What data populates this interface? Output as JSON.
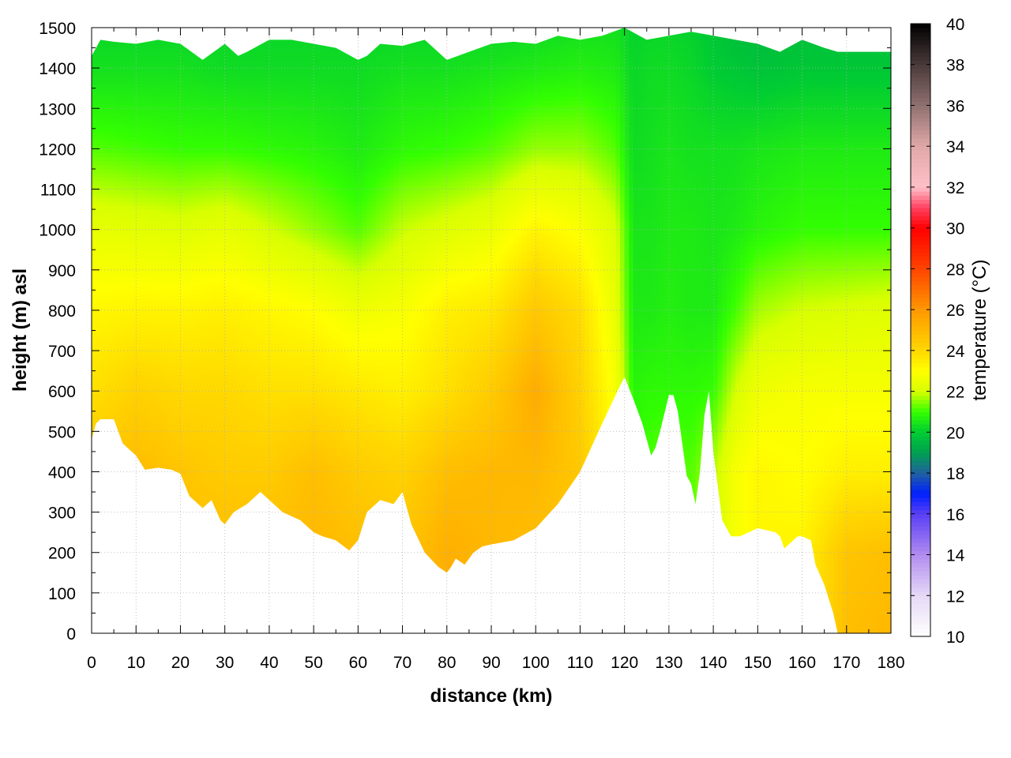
{
  "chart_data": {
    "type": "heatmap",
    "title": "",
    "xlabel": "distance (km)",
    "ylabel": "height (m) asl",
    "colorbar_label": "temperature (°C)",
    "xlim": [
      0,
      180
    ],
    "ylim": [
      0,
      1500
    ],
    "clim": [
      10,
      40
    ],
    "x_ticks": [
      0,
      10,
      20,
      30,
      40,
      50,
      60,
      70,
      80,
      90,
      100,
      110,
      120,
      130,
      140,
      150,
      160,
      170,
      180
    ],
    "y_ticks": [
      0,
      100,
      200,
      300,
      400,
      500,
      600,
      700,
      800,
      900,
      1000,
      1100,
      1200,
      1300,
      1400,
      1500
    ],
    "c_ticks": [
      10,
      12,
      14,
      16,
      18,
      20,
      22,
      24,
      26,
      28,
      30,
      32,
      34,
      36,
      38,
      40
    ],
    "grid": true,
    "colormap": [
      {
        "t": 10,
        "color": "#ffffff"
      },
      {
        "t": 12,
        "color": "#e6d9f7"
      },
      {
        "t": 14,
        "color": "#b18cf0"
      },
      {
        "t": 16,
        "color": "#5a3ff5"
      },
      {
        "t": 17,
        "color": "#0020ff"
      },
      {
        "t": 18,
        "color": "#2060a0"
      },
      {
        "t": 19,
        "color": "#00a050"
      },
      {
        "t": 20,
        "color": "#00cc33"
      },
      {
        "t": 21,
        "color": "#33ff00"
      },
      {
        "t": 22,
        "color": "#d8ff00"
      },
      {
        "t": 23,
        "color": "#ffff00"
      },
      {
        "t": 24,
        "color": "#ffd800"
      },
      {
        "t": 26,
        "color": "#ff9800"
      },
      {
        "t": 28,
        "color": "#ff4400"
      },
      {
        "t": 30,
        "color": "#ff0000"
      },
      {
        "t": 31,
        "color": "#ff4060"
      },
      {
        "t": 32,
        "color": "#ffc0c8"
      },
      {
        "t": 34,
        "color": "#e0a8a8"
      },
      {
        "t": 36,
        "color": "#907070"
      },
      {
        "t": 38,
        "color": "#4a3a3a"
      },
      {
        "t": 40,
        "color": "#000000"
      }
    ],
    "terrain_height": {
      "distance": [
        0,
        1,
        2,
        5,
        7,
        10,
        12,
        15,
        18,
        20,
        22,
        25,
        27,
        29,
        30,
        32,
        35,
        38,
        40,
        43,
        45,
        47,
        50,
        52,
        55,
        58,
        60,
        62,
        65,
        68,
        70,
        72,
        75,
        78,
        80,
        81,
        82,
        84,
        86,
        88,
        90,
        95,
        100,
        105,
        110,
        115,
        118,
        120,
        122,
        124,
        125,
        126,
        127,
        128,
        130,
        131,
        132,
        133,
        134,
        135,
        136,
        137,
        138,
        139,
        140,
        142,
        144,
        146,
        148,
        150,
        154,
        155,
        156,
        157,
        158,
        159,
        160,
        162,
        163,
        165,
        167,
        168,
        169,
        170,
        171,
        172,
        175,
        178,
        180
      ],
      "height": [
        480,
        520,
        530,
        530,
        470,
        440,
        405,
        410,
        405,
        395,
        340,
        310,
        330,
        280,
        270,
        300,
        320,
        350,
        330,
        300,
        290,
        280,
        250,
        240,
        230,
        205,
        230,
        300,
        330,
        320,
        350,
        270,
        200,
        165,
        150,
        165,
        185,
        170,
        200,
        215,
        220,
        230,
        260,
        320,
        400,
        520,
        590,
        635,
        580,
        520,
        480,
        440,
        460,
        500,
        590,
        590,
        550,
        470,
        390,
        370,
        320,
        400,
        540,
        600,
        450,
        280,
        240,
        240,
        250,
        260,
        250,
        240,
        210,
        220,
        230,
        240,
        240,
        230,
        170,
        120,
        50,
        0,
        0,
        0,
        0,
        0,
        0,
        0,
        0
      ]
    },
    "data_top_height": {
      "distance": [
        0,
        2,
        5,
        10,
        15,
        20,
        25,
        30,
        33,
        35,
        40,
        45,
        50,
        55,
        60,
        62,
        65,
        70,
        75,
        80,
        85,
        90,
        95,
        100,
        105,
        110,
        115,
        120,
        125,
        130,
        135,
        140,
        145,
        150,
        155,
        160,
        165,
        168,
        170,
        175,
        180
      ],
      "height": [
        1430,
        1470,
        1465,
        1460,
        1470,
        1460,
        1420,
        1460,
        1430,
        1440,
        1470,
        1470,
        1460,
        1450,
        1420,
        1430,
        1460,
        1455,
        1470,
        1420,
        1440,
        1460,
        1465,
        1460,
        1480,
        1470,
        1480,
        1500,
        1470,
        1480,
        1490,
        1480,
        1470,
        1460,
        1440,
        1470,
        1450,
        1440,
        1440,
        1440,
        1440
      ]
    },
    "temperature_profiles": {
      "distance": [
        0,
        10,
        20,
        30,
        40,
        50,
        60,
        70,
        80,
        90,
        100,
        110,
        118,
        122,
        126,
        130,
        135,
        140,
        145,
        150,
        160,
        170,
        180
      ],
      "height_levels": [
        0,
        200,
        400,
        600,
        800,
        1000,
        1200,
        1400,
        1500
      ],
      "temperature": [
        [
          24.8,
          24.8,
          24.5,
          23.8,
          23.2,
          22.4,
          21.2,
          20.4,
          20.2
        ],
        [
          24.8,
          24.8,
          24.9,
          24.2,
          23.3,
          22.3,
          21.1,
          20.4,
          20.2
        ],
        [
          24.8,
          24.8,
          24.6,
          24.0,
          23.3,
          22.2,
          21.0,
          20.4,
          20.2
        ],
        [
          24.8,
          24.8,
          24.4,
          24.0,
          23.4,
          22.4,
          21.0,
          20.3,
          20.2
        ],
        [
          24.8,
          24.8,
          24.4,
          23.8,
          23.2,
          22.0,
          20.9,
          20.3,
          20.2
        ],
        [
          25.0,
          25.0,
          24.8,
          23.8,
          23.0,
          21.6,
          20.8,
          20.3,
          20.2
        ],
        [
          24.8,
          24.8,
          24.4,
          23.6,
          22.6,
          21.2,
          20.6,
          20.3,
          20.2
        ],
        [
          24.6,
          24.6,
          24.2,
          23.4,
          22.8,
          21.9,
          20.9,
          20.4,
          20.2
        ],
        [
          25.3,
          25.3,
          24.8,
          23.8,
          23.4,
          22.2,
          21.0,
          20.4,
          20.2
        ],
        [
          25.0,
          25.0,
          25.0,
          24.4,
          23.6,
          22.5,
          21.2,
          20.5,
          20.2
        ],
        [
          24.8,
          24.8,
          25.0,
          25.4,
          24.5,
          23.3,
          21.6,
          20.6,
          20.3
        ],
        [
          24.5,
          24.5,
          24.5,
          24.2,
          23.9,
          22.9,
          21.6,
          20.7,
          20.4
        ],
        [
          23.0,
          23.0,
          23.0,
          22.8,
          22.4,
          22.1,
          21.2,
          20.6,
          20.4
        ],
        [
          21.0,
          21.0,
          21.0,
          20.8,
          20.6,
          20.5,
          20.3,
          20.2,
          20.1
        ],
        [
          21.2,
          21.2,
          21.2,
          20.9,
          20.6,
          20.5,
          20.4,
          20.3,
          20.2
        ],
        [
          21.3,
          21.3,
          21.3,
          20.9,
          20.7,
          20.6,
          20.5,
          20.3,
          20.2
        ],
        [
          21.2,
          21.2,
          21.2,
          20.9,
          20.6,
          20.6,
          20.4,
          20.2,
          20.1
        ],
        [
          22.0,
          22.0,
          21.8,
          21.0,
          20.6,
          20.5,
          20.4,
          20.0,
          19.9
        ],
        [
          22.8,
          22.8,
          22.8,
          22.0,
          21.1,
          20.6,
          20.4,
          19.9,
          19.7
        ],
        [
          23.2,
          23.2,
          23.2,
          22.6,
          21.7,
          20.8,
          20.5,
          19.8,
          19.6
        ],
        [
          23.3,
          23.3,
          23.0,
          22.8,
          22.0,
          21.0,
          20.6,
          19.9,
          19.7
        ],
        [
          24.8,
          24.6,
          23.4,
          22.8,
          22.1,
          21.0,
          20.6,
          19.9,
          19.7
        ],
        [
          25.0,
          24.8,
          23.4,
          22.8,
          22.2,
          21.0,
          20.6,
          19.9,
          19.7
        ]
      ]
    }
  }
}
